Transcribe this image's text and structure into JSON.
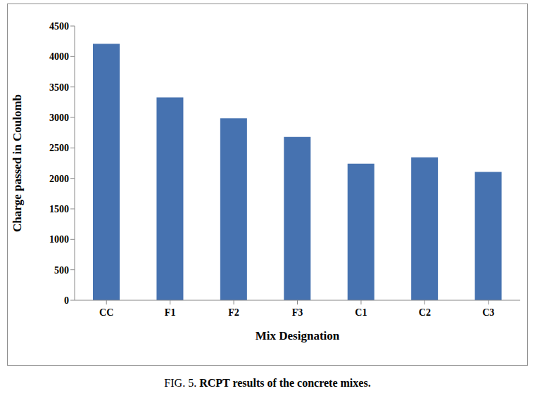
{
  "chart_data": {
    "type": "bar",
    "title": "FIG. 5. RCPT results of the concrete mixes.",
    "x_label": "Mix Designation",
    "y_label": "Charge passed in Coulomb",
    "categories": [
      "CC",
      "F1",
      "F2",
      "F3",
      "C1",
      "C2",
      "C3"
    ],
    "values": [
      4210,
      3330,
      2985,
      2680,
      2240,
      2345,
      2105
    ],
    "color": "#4672b0",
    "ylim": [
      0,
      4500
    ],
    "yticks": [
      0,
      500,
      1000,
      1500,
      2000,
      2500,
      3000,
      3500,
      4000,
      4500
    ],
    "grid": false
  }
}
